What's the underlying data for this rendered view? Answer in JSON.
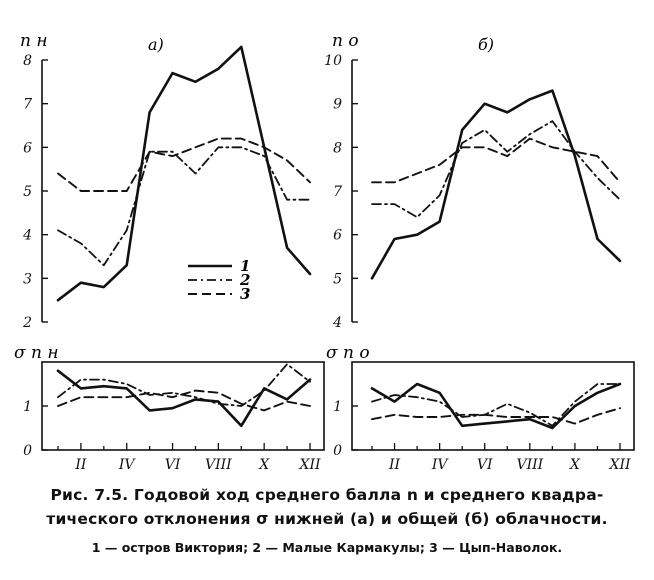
{
  "caption": {
    "line1": "Рис. 7.5. Годовой ход среднего балла n и среднего квадра-",
    "line2": "тического отклонения σ нижней (a) и общей (б) облачности.",
    "legend_line": "1 — остров Виктория; 2 — Малые Кармакулы; 3 — Цып-Наволок."
  },
  "line_styles": {
    "1": "solid",
    "2": "dash-dot",
    "3": "dashed"
  },
  "chart_data": [
    {
      "type": "line",
      "panel_label": "a)",
      "ylabel": "n н",
      "ylim": [
        2,
        8
      ],
      "yticks": [
        "2",
        "3",
        "4",
        "5",
        "6",
        "7",
        "8"
      ],
      "x": [
        1,
        2,
        3,
        4,
        5,
        6,
        7,
        8,
        9,
        10,
        11,
        12
      ],
      "xtick_labels": [
        "II",
        "IV",
        "VI",
        "VIII",
        "X",
        "XII"
      ],
      "legend": [
        "1",
        "2",
        "3"
      ],
      "series": [
        {
          "name": "1",
          "values": [
            2.5,
            2.9,
            2.8,
            3.3,
            6.8,
            7.7,
            7.5,
            7.8,
            8.3,
            6.0,
            3.7,
            3.1
          ]
        },
        {
          "name": "2",
          "values": [
            4.1,
            3.8,
            3.3,
            4.1,
            5.9,
            5.9,
            5.4,
            6.0,
            6.0,
            5.8,
            4.8,
            4.8
          ]
        },
        {
          "name": "3",
          "values": [
            5.4,
            5.0,
            5.0,
            5.0,
            5.9,
            5.8,
            6.0,
            6.2,
            6.2,
            6.0,
            5.7,
            5.2
          ]
        }
      ]
    },
    {
      "type": "line",
      "panel_label": "б)",
      "ylabel": "n о",
      "ylim": [
        4,
        10
      ],
      "yticks": [
        "4",
        "5",
        "6",
        "7",
        "8",
        "9",
        "10"
      ],
      "x": [
        1,
        2,
        3,
        4,
        5,
        6,
        7,
        8,
        9,
        10,
        11,
        12
      ],
      "xtick_labels": [
        "II",
        "IV",
        "VI",
        "VIII",
        "X",
        "XII"
      ],
      "series": [
        {
          "name": "1",
          "values": [
            5.0,
            5.9,
            6.0,
            6.3,
            8.4,
            9.0,
            8.8,
            9.1,
            9.3,
            7.8,
            5.9,
            5.4
          ]
        },
        {
          "name": "2",
          "values": [
            6.7,
            6.7,
            6.4,
            6.9,
            8.1,
            8.4,
            7.9,
            8.3,
            8.6,
            7.9,
            7.3,
            6.8
          ]
        },
        {
          "name": "3",
          "values": [
            7.2,
            7.2,
            7.4,
            7.6,
            8.0,
            8.0,
            7.8,
            8.2,
            8.0,
            7.9,
            7.8,
            7.2
          ]
        }
      ]
    },
    {
      "type": "line",
      "ylabel": "σ n н",
      "ylim": [
        0,
        2
      ],
      "yticks": [
        "0",
        "1"
      ],
      "x": [
        1,
        2,
        3,
        4,
        5,
        6,
        7,
        8,
        9,
        10,
        11,
        12
      ],
      "xtick_labels": [
        "II",
        "IV",
        "VI",
        "VIII",
        "X",
        "XII"
      ],
      "series": [
        {
          "name": "1",
          "values": [
            1.8,
            1.4,
            1.45,
            1.4,
            0.9,
            0.95,
            1.15,
            1.1,
            0.55,
            1.4,
            1.15,
            1.6
          ]
        },
        {
          "name": "2",
          "values": [
            1.2,
            1.6,
            1.6,
            1.5,
            1.25,
            1.3,
            1.2,
            1.05,
            1.0,
            1.35,
            1.95,
            1.55
          ]
        },
        {
          "name": "3",
          "values": [
            1.0,
            1.2,
            1.2,
            1.2,
            1.3,
            1.2,
            1.35,
            1.3,
            1.05,
            0.9,
            1.1,
            1.0
          ]
        }
      ]
    },
    {
      "type": "line",
      "ylabel": "σ n о",
      "ylim": [
        0,
        2
      ],
      "yticks": [
        "0",
        "1"
      ],
      "x": [
        1,
        2,
        3,
        4,
        5,
        6,
        7,
        8,
        9,
        10,
        11,
        12
      ],
      "xtick_labels": [
        "II",
        "IV",
        "VI",
        "VIII",
        "X",
        "XII"
      ],
      "series": [
        {
          "name": "1",
          "values": [
            1.4,
            1.1,
            1.5,
            1.3,
            0.55,
            0.6,
            0.65,
            0.7,
            0.5,
            1.0,
            1.3,
            1.5
          ]
        },
        {
          "name": "2",
          "values": [
            1.1,
            1.25,
            1.2,
            1.1,
            0.75,
            0.8,
            1.05,
            0.85,
            0.55,
            1.1,
            1.5,
            1.5
          ]
        },
        {
          "name": "3",
          "values": [
            0.7,
            0.8,
            0.75,
            0.75,
            0.8,
            0.8,
            0.75,
            0.75,
            0.75,
            0.6,
            0.8,
            0.95
          ]
        }
      ]
    }
  ]
}
